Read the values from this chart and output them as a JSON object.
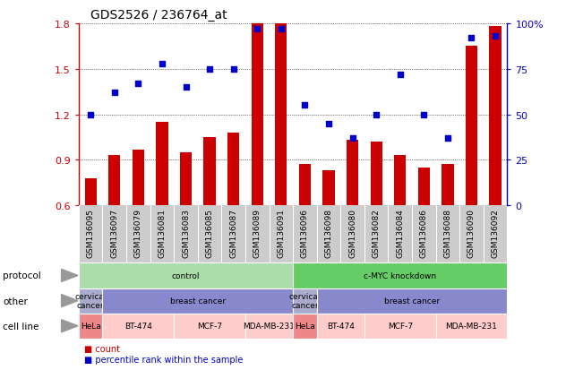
{
  "title": "GDS2526 / 236764_at",
  "samples": [
    "GSM136095",
    "GSM136097",
    "GSM136079",
    "GSM136081",
    "GSM136083",
    "GSM136085",
    "GSM136087",
    "GSM136089",
    "GSM136091",
    "GSM136096",
    "GSM136098",
    "GSM136080",
    "GSM136082",
    "GSM136084",
    "GSM136086",
    "GSM136088",
    "GSM136090",
    "GSM136092"
  ],
  "bar_values": [
    0.78,
    0.93,
    0.97,
    1.15,
    0.95,
    1.05,
    1.08,
    1.8,
    1.8,
    0.87,
    0.83,
    1.03,
    1.02,
    0.93,
    0.85,
    0.87,
    1.65,
    1.78
  ],
  "dot_values": [
    50,
    62,
    67,
    78,
    65,
    75,
    75,
    97,
    97,
    55,
    45,
    37,
    50,
    72,
    50,
    37,
    92,
    93
  ],
  "ylim_left": [
    0.6,
    1.8
  ],
  "ylim_right": [
    0,
    100
  ],
  "yticks_left": [
    0.6,
    0.9,
    1.2,
    1.5,
    1.8
  ],
  "yticks_right": [
    0,
    25,
    50,
    75,
    100
  ],
  "bar_color": "#cc0000",
  "dot_color": "#0000cc",
  "protocol_color_control": "#aaddaa",
  "protocol_color_cmyc": "#66cc66",
  "other_cervical_color": "#aaaacc",
  "other_breast_color": "#8888cc",
  "cell_hela_color": "#ee8888",
  "cell_other_color": "#ffcccc",
  "xtick_bg": "#cccccc",
  "bg_color": "#ffffff",
  "legend_count_color": "#cc0000",
  "legend_dot_color": "#0000cc"
}
